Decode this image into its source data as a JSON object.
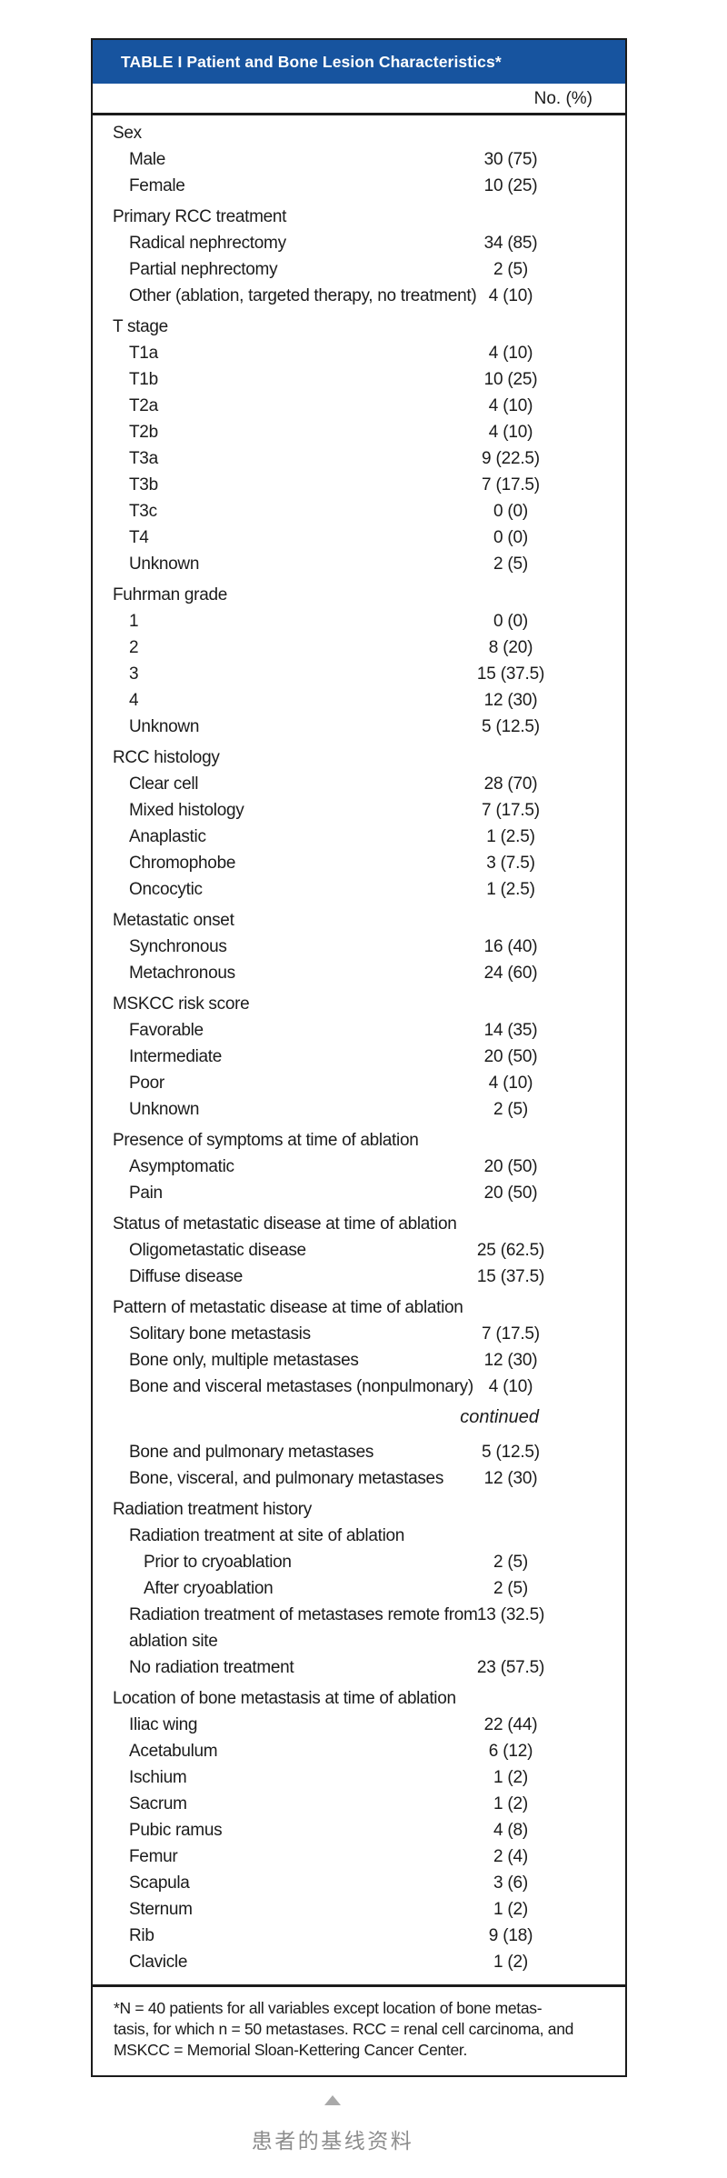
{
  "table": {
    "title": "TABLE I Patient and Bone Lesion Characteristics*",
    "value_header": "No. (%)",
    "sections": [
      {
        "header": "Sex",
        "rows": [
          {
            "label": "Male",
            "value": "30 (75)"
          },
          {
            "label": "Female",
            "value": "10 (25)"
          }
        ]
      },
      {
        "header": "Primary RCC treatment",
        "rows": [
          {
            "label": "Radical nephrectomy",
            "value": "34 (85)"
          },
          {
            "label": "Partial nephrectomy",
            "value": "2 (5)"
          },
          {
            "label": "Other (ablation, targeted therapy, no treatment)",
            "value": "4 (10)"
          }
        ]
      },
      {
        "header": "T stage",
        "rows": [
          {
            "label": "T1a",
            "value": "4 (10)"
          },
          {
            "label": "T1b",
            "value": "10 (25)"
          },
          {
            "label": "T2a",
            "value": "4 (10)"
          },
          {
            "label": "T2b",
            "value": "4 (10)"
          },
          {
            "label": "T3a",
            "value": "9 (22.5)"
          },
          {
            "label": "T3b",
            "value": "7 (17.5)"
          },
          {
            "label": "T3c",
            "value": "0 (0)"
          },
          {
            "label": "T4",
            "value": "0 (0)"
          },
          {
            "label": "Unknown",
            "value": "2 (5)"
          }
        ]
      },
      {
        "header": "Fuhrman grade",
        "rows": [
          {
            "label": "1",
            "value": "0 (0)"
          },
          {
            "label": "2",
            "value": "8 (20)"
          },
          {
            "label": "3",
            "value": "15 (37.5)"
          },
          {
            "label": "4",
            "value": "12 (30)"
          },
          {
            "label": "Unknown",
            "value": "5 (12.5)"
          }
        ]
      },
      {
        "header": "RCC histology",
        "rows": [
          {
            "label": "Clear cell",
            "value": "28 (70)"
          },
          {
            "label": "Mixed histology",
            "value": "7 (17.5)"
          },
          {
            "label": "Anaplastic",
            "value": "1 (2.5)"
          },
          {
            "label": "Chromophobe",
            "value": "3 (7.5)"
          },
          {
            "label": "Oncocytic",
            "value": "1 (2.5)"
          }
        ]
      },
      {
        "header": "Metastatic onset",
        "rows": [
          {
            "label": "Synchronous",
            "value": "16 (40)"
          },
          {
            "label": "Metachronous",
            "value": "24 (60)"
          }
        ]
      },
      {
        "header": "MSKCC risk score",
        "rows": [
          {
            "label": "Favorable",
            "value": "14 (35)"
          },
          {
            "label": "Intermediate",
            "value": "20 (50)"
          },
          {
            "label": "Poor",
            "value": "4 (10)"
          },
          {
            "label": "Unknown",
            "value": "2 (5)"
          }
        ]
      },
      {
        "header": "Presence of symptoms at time of ablation",
        "rows": [
          {
            "label": "Asymptomatic",
            "value": "20 (50)"
          },
          {
            "label": "Pain",
            "value": "20 (50)"
          }
        ]
      },
      {
        "header": "Status of metastatic disease at time of ablation",
        "rows": [
          {
            "label": "Oligometastatic disease",
            "value": "25 (62.5)"
          },
          {
            "label": "Diffuse disease",
            "value": "15 (37.5)"
          }
        ]
      },
      {
        "header": "Pattern of metastatic disease at time of ablation",
        "rows": [
          {
            "label": "Solitary bone metastasis",
            "value": "7 (17.5)"
          },
          {
            "label": "Bone only, multiple metastases",
            "value": "12 (30)"
          },
          {
            "label": "Bone and visceral metastases (nonpulmonary)",
            "value": "4 (10)"
          },
          {
            "type": "continued",
            "label": "continued"
          },
          {
            "label": "Bone and pulmonary metastases",
            "value": "5 (12.5)"
          },
          {
            "label": "Bone, visceral, and pulmonary metastases",
            "value": "12 (30)"
          }
        ]
      },
      {
        "header": "Radiation treatment history",
        "rows": [
          {
            "label": "Radiation treatment at site of ablation",
            "value": ""
          },
          {
            "label": "Prior to cryoablation",
            "value": "2 (5)",
            "indent": 2
          },
          {
            "label": "After cryoablation",
            "value": "2 (5)",
            "indent": 2
          },
          {
            "label": "Radiation treatment of metastases remote from",
            "label2": "ablation site",
            "value": "13 (32.5)"
          },
          {
            "label": "No radiation treatment",
            "value": "23 (57.5)"
          }
        ]
      },
      {
        "header": "Location of bone metastasis at time of ablation",
        "rows": [
          {
            "label": "Iliac wing",
            "value": "22 (44)"
          },
          {
            "label": "Acetabulum",
            "value": "6 (12)"
          },
          {
            "label": "Ischium",
            "value": "1 (2)"
          },
          {
            "label": "Sacrum",
            "value": "1 (2)"
          },
          {
            "label": "Pubic ramus",
            "value": "4 (8)"
          },
          {
            "label": "Femur",
            "value": "2 (4)"
          },
          {
            "label": "Scapula",
            "value": "3 (6)"
          },
          {
            "label": "Sternum",
            "value": "1 (2)"
          },
          {
            "label": "Rib",
            "value": "9 (18)"
          },
          {
            "label": "Clavicle",
            "value": "1 (2)"
          }
        ]
      }
    ],
    "footnote_lines": [
      "*N = 40 patients for all variables except location of bone metas-",
      "tasis, for which n = 50 metastases. RCC = renal cell carcinoma, and",
      "MSKCC = Memorial Sloan-Kettering Cancer Center."
    ]
  },
  "caption": {
    "icon": "up-triangle-icon",
    "text": "患者的基线资料"
  },
  "colors": {
    "header_bg": "#17549f",
    "border": "#1b1b1b",
    "text": "#1b1b1b",
    "caption": "#8d8d8d",
    "arrow": "#a9a9a9"
  }
}
